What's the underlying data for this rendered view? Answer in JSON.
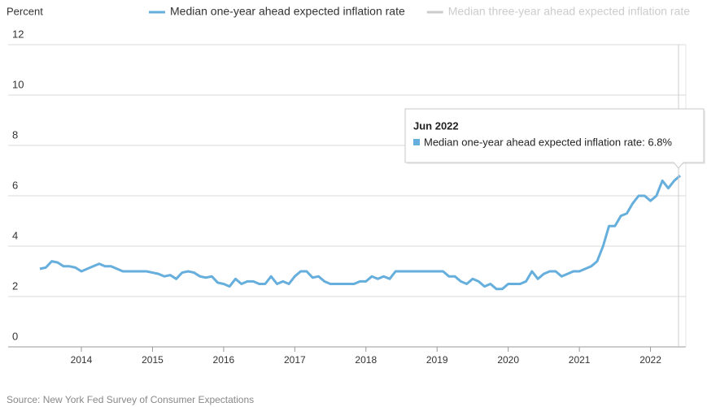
{
  "chart_data": {
    "type": "line",
    "y_axis_label": "Percent",
    "source": "Source: New York Fed Survey of Consumer Expectations",
    "x": [
      "Jun 2013",
      "Jul 2013",
      "Aug 2013",
      "Sep 2013",
      "Oct 2013",
      "Nov 2013",
      "Dec 2013",
      "Jan 2014",
      "Feb 2014",
      "Mar 2014",
      "Apr 2014",
      "May 2014",
      "Jun 2014",
      "Jul 2014",
      "Aug 2014",
      "Sep 2014",
      "Oct 2014",
      "Nov 2014",
      "Dec 2014",
      "Jan 2015",
      "Feb 2015",
      "Mar 2015",
      "Apr 2015",
      "May 2015",
      "Jun 2015",
      "Jul 2015",
      "Aug 2015",
      "Sep 2015",
      "Oct 2015",
      "Nov 2015",
      "Dec 2015",
      "Jan 2016",
      "Feb 2016",
      "Mar 2016",
      "Apr 2016",
      "May 2016",
      "Jun 2016",
      "Jul 2016",
      "Aug 2016",
      "Sep 2016",
      "Oct 2016",
      "Nov 2016",
      "Dec 2016",
      "Jan 2017",
      "Feb 2017",
      "Mar 2017",
      "Apr 2017",
      "May 2017",
      "Jun 2017",
      "Jul 2017",
      "Aug 2017",
      "Sep 2017",
      "Oct 2017",
      "Nov 2017",
      "Dec 2017",
      "Jan 2018",
      "Feb 2018",
      "Mar 2018",
      "Apr 2018",
      "May 2018",
      "Jun 2018",
      "Jul 2018",
      "Aug 2018",
      "Sep 2018",
      "Oct 2018",
      "Nov 2018",
      "Dec 2018",
      "Jan 2019",
      "Feb 2019",
      "Mar 2019",
      "Apr 2019",
      "May 2019",
      "Jun 2019",
      "Jul 2019",
      "Aug 2019",
      "Sep 2019",
      "Oct 2019",
      "Nov 2019",
      "Dec 2019",
      "Jan 2020",
      "Feb 2020",
      "Mar 2020",
      "Apr 2020",
      "May 2020",
      "Jun 2020",
      "Jul 2020",
      "Aug 2020",
      "Sep 2020",
      "Oct 2020",
      "Nov 2020",
      "Dec 2020",
      "Jan 2021",
      "Feb 2021",
      "Mar 2021",
      "Apr 2021",
      "May 2021",
      "Jun 2021",
      "Jul 2021",
      "Aug 2021",
      "Sep 2021",
      "Oct 2021",
      "Nov 2021",
      "Dec 2021",
      "Jan 2022",
      "Feb 2022",
      "Mar 2022",
      "Apr 2022",
      "May 2022",
      "Jun 2022"
    ],
    "series": [
      {
        "name": "Median one-year ahead expected inflation rate",
        "color": "#66aedc",
        "values": [
          3.1,
          3.15,
          3.4,
          3.35,
          3.2,
          3.2,
          3.15,
          3.0,
          3.1,
          3.2,
          3.3,
          3.2,
          3.2,
          3.1,
          3.0,
          3.0,
          3.0,
          3.0,
          3.0,
          2.95,
          2.9,
          2.8,
          2.85,
          2.7,
          2.95,
          3.0,
          2.95,
          2.8,
          2.75,
          2.8,
          2.55,
          2.5,
          2.4,
          2.7,
          2.5,
          2.6,
          2.6,
          2.5,
          2.5,
          2.8,
          2.5,
          2.6,
          2.5,
          2.8,
          3.0,
          3.0,
          2.75,
          2.8,
          2.6,
          2.5,
          2.5,
          2.5,
          2.5,
          2.5,
          2.6,
          2.6,
          2.8,
          2.7,
          2.8,
          2.7,
          3.0,
          3.0,
          3.0,
          3.0,
          3.0,
          3.0,
          3.0,
          3.0,
          3.0,
          2.8,
          2.8,
          2.6,
          2.5,
          2.7,
          2.6,
          2.4,
          2.5,
          2.3,
          2.3,
          2.5,
          2.5,
          2.5,
          2.6,
          3.0,
          2.7,
          2.9,
          3.0,
          3.0,
          2.8,
          2.9,
          3.0,
          3.0,
          3.1,
          3.2,
          3.4,
          4.0,
          4.8,
          4.8,
          5.2,
          5.3,
          5.7,
          6.0,
          6.0,
          5.8,
          6.0,
          6.6,
          6.3,
          6.6,
          6.8
        ]
      },
      {
        "name": "Median three-year ahead expected inflation rate",
        "color": "#cccccc",
        "visible": false
      }
    ],
    "ylim": [
      0,
      12
    ],
    "yticks": [
      0,
      2,
      4,
      6,
      8,
      10,
      12
    ],
    "xticks": [
      {
        "value": "Jan 2014",
        "label": "2014"
      },
      {
        "value": "Jan 2015",
        "label": "2015"
      },
      {
        "value": "Jan 2016",
        "label": "2016"
      },
      {
        "value": "Jan 2017",
        "label": "2017"
      },
      {
        "value": "Jan 2018",
        "label": "2018"
      },
      {
        "value": "Jan 2019",
        "label": "2019"
      },
      {
        "value": "Jan 2020",
        "label": "2020"
      },
      {
        "value": "Jan 2021",
        "label": "2021"
      },
      {
        "value": "Jan 2022",
        "label": "2022"
      }
    ],
    "grid": true,
    "tooltip": {
      "title": "Jun 2022",
      "text": "Median one-year ahead expected inflation rate: 6.8%"
    }
  }
}
